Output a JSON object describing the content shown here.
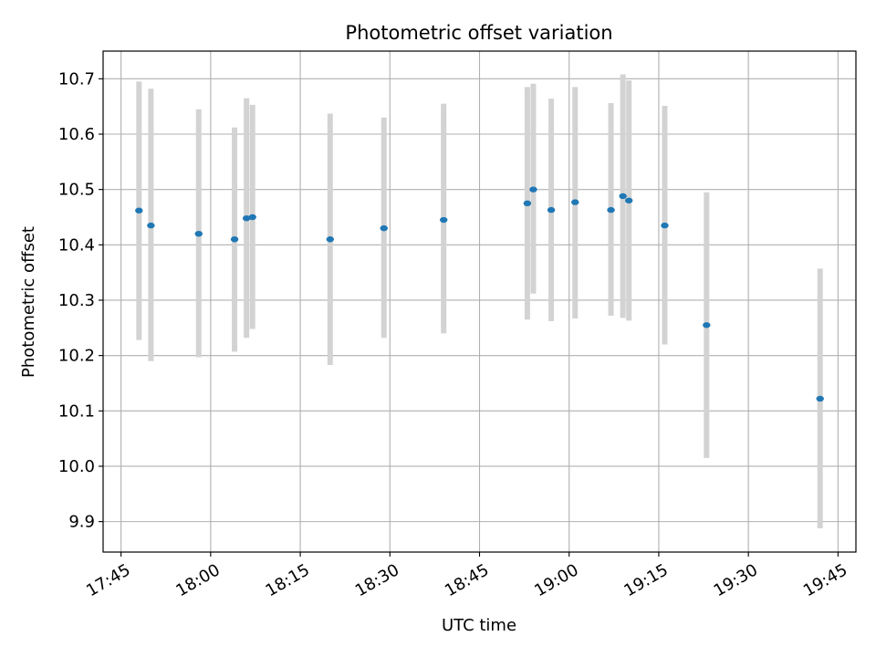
{
  "chart_data": {
    "type": "scatter",
    "title": "Photometric offset variation",
    "xlabel": "UTC time",
    "ylabel": "Photometric offset",
    "x_ticks": [
      "17:45",
      "18:00",
      "18:15",
      "18:30",
      "18:45",
      "19:00",
      "19:15",
      "19:30",
      "19:45"
    ],
    "y_ticks": [
      "9.9",
      "10.0",
      "10.1",
      "10.2",
      "10.3",
      "10.4",
      "10.5",
      "10.6",
      "10.7"
    ],
    "xlim": [
      "17:42",
      "19:48"
    ],
    "ylim": [
      9.845,
      10.75
    ],
    "grid": true,
    "error_bars": true,
    "points": [
      {
        "x": "17:48",
        "y": 10.462,
        "yerr": [
          10.228,
          10.695
        ]
      },
      {
        "x": "17:50",
        "y": 10.435,
        "yerr": [
          10.19,
          10.682
        ]
      },
      {
        "x": "17:58",
        "y": 10.42,
        "yerr": [
          10.197,
          10.645
        ]
      },
      {
        "x": "18:04",
        "y": 10.41,
        "yerr": [
          10.207,
          10.612
        ]
      },
      {
        "x": "18:06",
        "y": 10.448,
        "yerr": [
          10.232,
          10.665
        ]
      },
      {
        "x": "18:07",
        "y": 10.45,
        "yerr": [
          10.248,
          10.653
        ]
      },
      {
        "x": "18:20",
        "y": 10.41,
        "yerr": [
          10.183,
          10.637
        ]
      },
      {
        "x": "18:29",
        "y": 10.43,
        "yerr": [
          10.232,
          10.63
        ]
      },
      {
        "x": "18:39",
        "y": 10.445,
        "yerr": [
          10.24,
          10.655
        ]
      },
      {
        "x": "18:53",
        "y": 10.475,
        "yerr": [
          10.265,
          10.685
        ]
      },
      {
        "x": "18:54",
        "y": 10.5,
        "yerr": [
          10.312,
          10.691
        ]
      },
      {
        "x": "18:57",
        "y": 10.463,
        "yerr": [
          10.262,
          10.664
        ]
      },
      {
        "x": "19:01",
        "y": 10.477,
        "yerr": [
          10.267,
          10.685
        ]
      },
      {
        "x": "19:07",
        "y": 10.463,
        "yerr": [
          10.272,
          10.656
        ]
      },
      {
        "x": "19:09",
        "y": 10.488,
        "yerr": [
          10.268,
          10.708
        ]
      },
      {
        "x": "19:10",
        "y": 10.48,
        "yerr": [
          10.263,
          10.697
        ]
      },
      {
        "x": "19:16",
        "y": 10.435,
        "yerr": [
          10.22,
          10.651
        ]
      },
      {
        "x": "19:23",
        "y": 10.255,
        "yerr": [
          10.015,
          10.495
        ]
      },
      {
        "x": "19:42",
        "y": 10.122,
        "yerr": [
          9.888,
          10.357
        ]
      }
    ],
    "colors": {
      "marker": "#1f77b4",
      "errorbar": "#d3d3d3",
      "grid": "#b0b0b0",
      "axes": "#000000"
    }
  }
}
